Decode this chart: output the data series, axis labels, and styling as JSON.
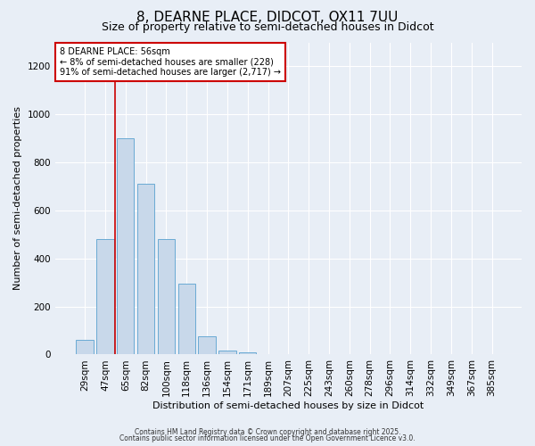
{
  "title": "8, DEARNE PLACE, DIDCOT, OX11 7UU",
  "subtitle": "Size of property relative to semi-detached houses in Didcot",
  "xlabel": "Distribution of semi-detached houses by size in Didcot",
  "ylabel": "Number of semi-detached properties",
  "bar_color": "#c8d8ea",
  "bar_edge_color": "#6aaad4",
  "categories": [
    "29sqm",
    "47sqm",
    "65sqm",
    "82sqm",
    "100sqm",
    "118sqm",
    "136sqm",
    "154sqm",
    "171sqm",
    "189sqm",
    "207sqm",
    "225sqm",
    "243sqm",
    "260sqm",
    "278sqm",
    "296sqm",
    "314sqm",
    "332sqm",
    "349sqm",
    "367sqm",
    "385sqm"
  ],
  "values": [
    60,
    480,
    900,
    710,
    480,
    295,
    75,
    15,
    10,
    0,
    0,
    0,
    0,
    0,
    0,
    0,
    0,
    0,
    0,
    0,
    0
  ],
  "ylim": [
    0,
    1300
  ],
  "yticks": [
    0,
    200,
    400,
    600,
    800,
    1000,
    1200
  ],
  "property_line_x": 1.5,
  "property_line_color": "#cc0000",
  "annotation_text": "8 DEARNE PLACE: 56sqm\n← 8% of semi-detached houses are smaller (228)\n91% of semi-detached houses are larger (2,717) →",
  "annotation_box_color": "#ffffff",
  "annotation_box_edge": "#cc0000",
  "footer1": "Contains HM Land Registry data © Crown copyright and database right 2025.",
  "footer2": "Contains public sector information licensed under the Open Government Licence v3.0.",
  "bg_color": "#e8eef6",
  "plot_bg_color": "#e8eef6",
  "grid_color": "#ffffff",
  "title_fontsize": 11,
  "subtitle_fontsize": 9,
  "axis_label_fontsize": 8,
  "tick_fontsize": 7.5,
  "annotation_fontsize": 7,
  "footer_fontsize": 5.5,
  "bar_width": 0.85
}
